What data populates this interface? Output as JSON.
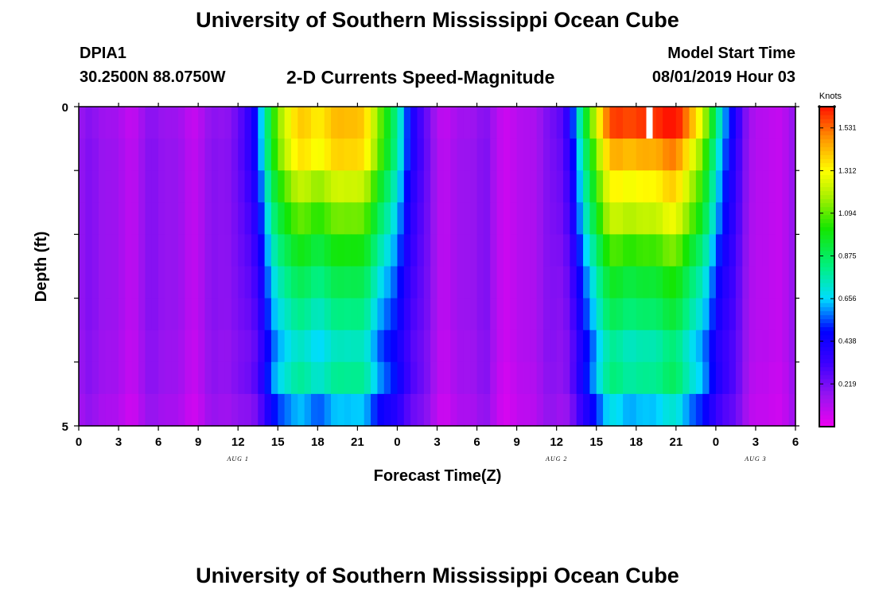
{
  "header": {
    "title": "University of Southern Mississippi Ocean Cube",
    "station": "DPIA1",
    "coordinates": "30.2500N 88.0750W",
    "subtitle": "2-D Currents Speed-Magnitude",
    "model_start_label": "Model Start Time",
    "model_start_value": "08/01/2019 Hour 03"
  },
  "footer": {
    "title": "University of Southern Mississippi Ocean Cube"
  },
  "chart_data": {
    "type": "heatmap",
    "xlabel": "Forecast Time(Z)",
    "ylabel": "Depth (ft)",
    "x_tick_labels": [
      "0",
      "3",
      "6",
      "9",
      "12",
      "15",
      "18",
      "21",
      "0",
      "3",
      "6",
      "9",
      "12",
      "15",
      "18",
      "21",
      "0",
      "3",
      "6"
    ],
    "date_labels": [
      {
        "text": "AUG 1",
        "hour": 12
      },
      {
        "text": "AUG 2",
        "hour": 36
      },
      {
        "text": "AUG 3",
        "hour": 51
      }
    ],
    "xlim_hours": [
      0,
      54
    ],
    "y_tick_labels": [
      "0",
      "5"
    ],
    "ylim": [
      0,
      5
    ],
    "colorbar": {
      "unit_label": "Knots",
      "tick_labels": [
        "1.531",
        "1.312",
        "1.094",
        "0.875",
        "0.656",
        "0.438",
        "0.219"
      ],
      "ticks": [
        1.531,
        1.312,
        1.094,
        0.875,
        0.656,
        0.438,
        0.219
      ],
      "range": [
        0,
        1.64
      ]
    },
    "depth_layers": [
      {
        "depth": 0.25,
        "peak1": 1.4,
        "peak2": 1.62,
        "trough1": 0.14,
        "trough2": 0.12
      },
      {
        "depth": 0.75,
        "peak1": 1.36,
        "peak2": 1.46,
        "trough1": 0.15,
        "trough2": 0.12
      },
      {
        "depth": 1.25,
        "peak1": 1.22,
        "peak2": 1.34,
        "trough1": 0.15,
        "trough2": 0.12
      },
      {
        "depth": 1.75,
        "peak1": 1.1,
        "peak2": 1.24,
        "trough1": 0.15,
        "trough2": 0.12
      },
      {
        "depth": 2.25,
        "peak1": 0.98,
        "peak2": 1.08,
        "trough1": 0.15,
        "trough2": 0.12
      },
      {
        "depth": 2.75,
        "peak1": 0.88,
        "peak2": 0.96,
        "trough1": 0.15,
        "trough2": 0.12
      },
      {
        "depth": 3.25,
        "peak1": 0.8,
        "peak2": 0.88,
        "trough1": 0.15,
        "trough2": 0.12
      },
      {
        "depth": 3.75,
        "peak1": 0.72,
        "peak2": 0.78,
        "trough1": 0.14,
        "trough2": 0.12
      },
      {
        "depth": 4.25,
        "peak1": 0.78,
        "peak2": 0.82,
        "trough1": 0.14,
        "trough2": 0.11
      },
      {
        "depth": 4.75,
        "peak1": 0.62,
        "peak2": 0.66,
        "trough1": 0.12,
        "trough2": 0.1
      }
    ],
    "event_hours": {
      "peak1_center": 19.0,
      "peak2_center": 43.0,
      "rise_width": 5.5,
      "white_marker_hour": 43.0
    }
  }
}
